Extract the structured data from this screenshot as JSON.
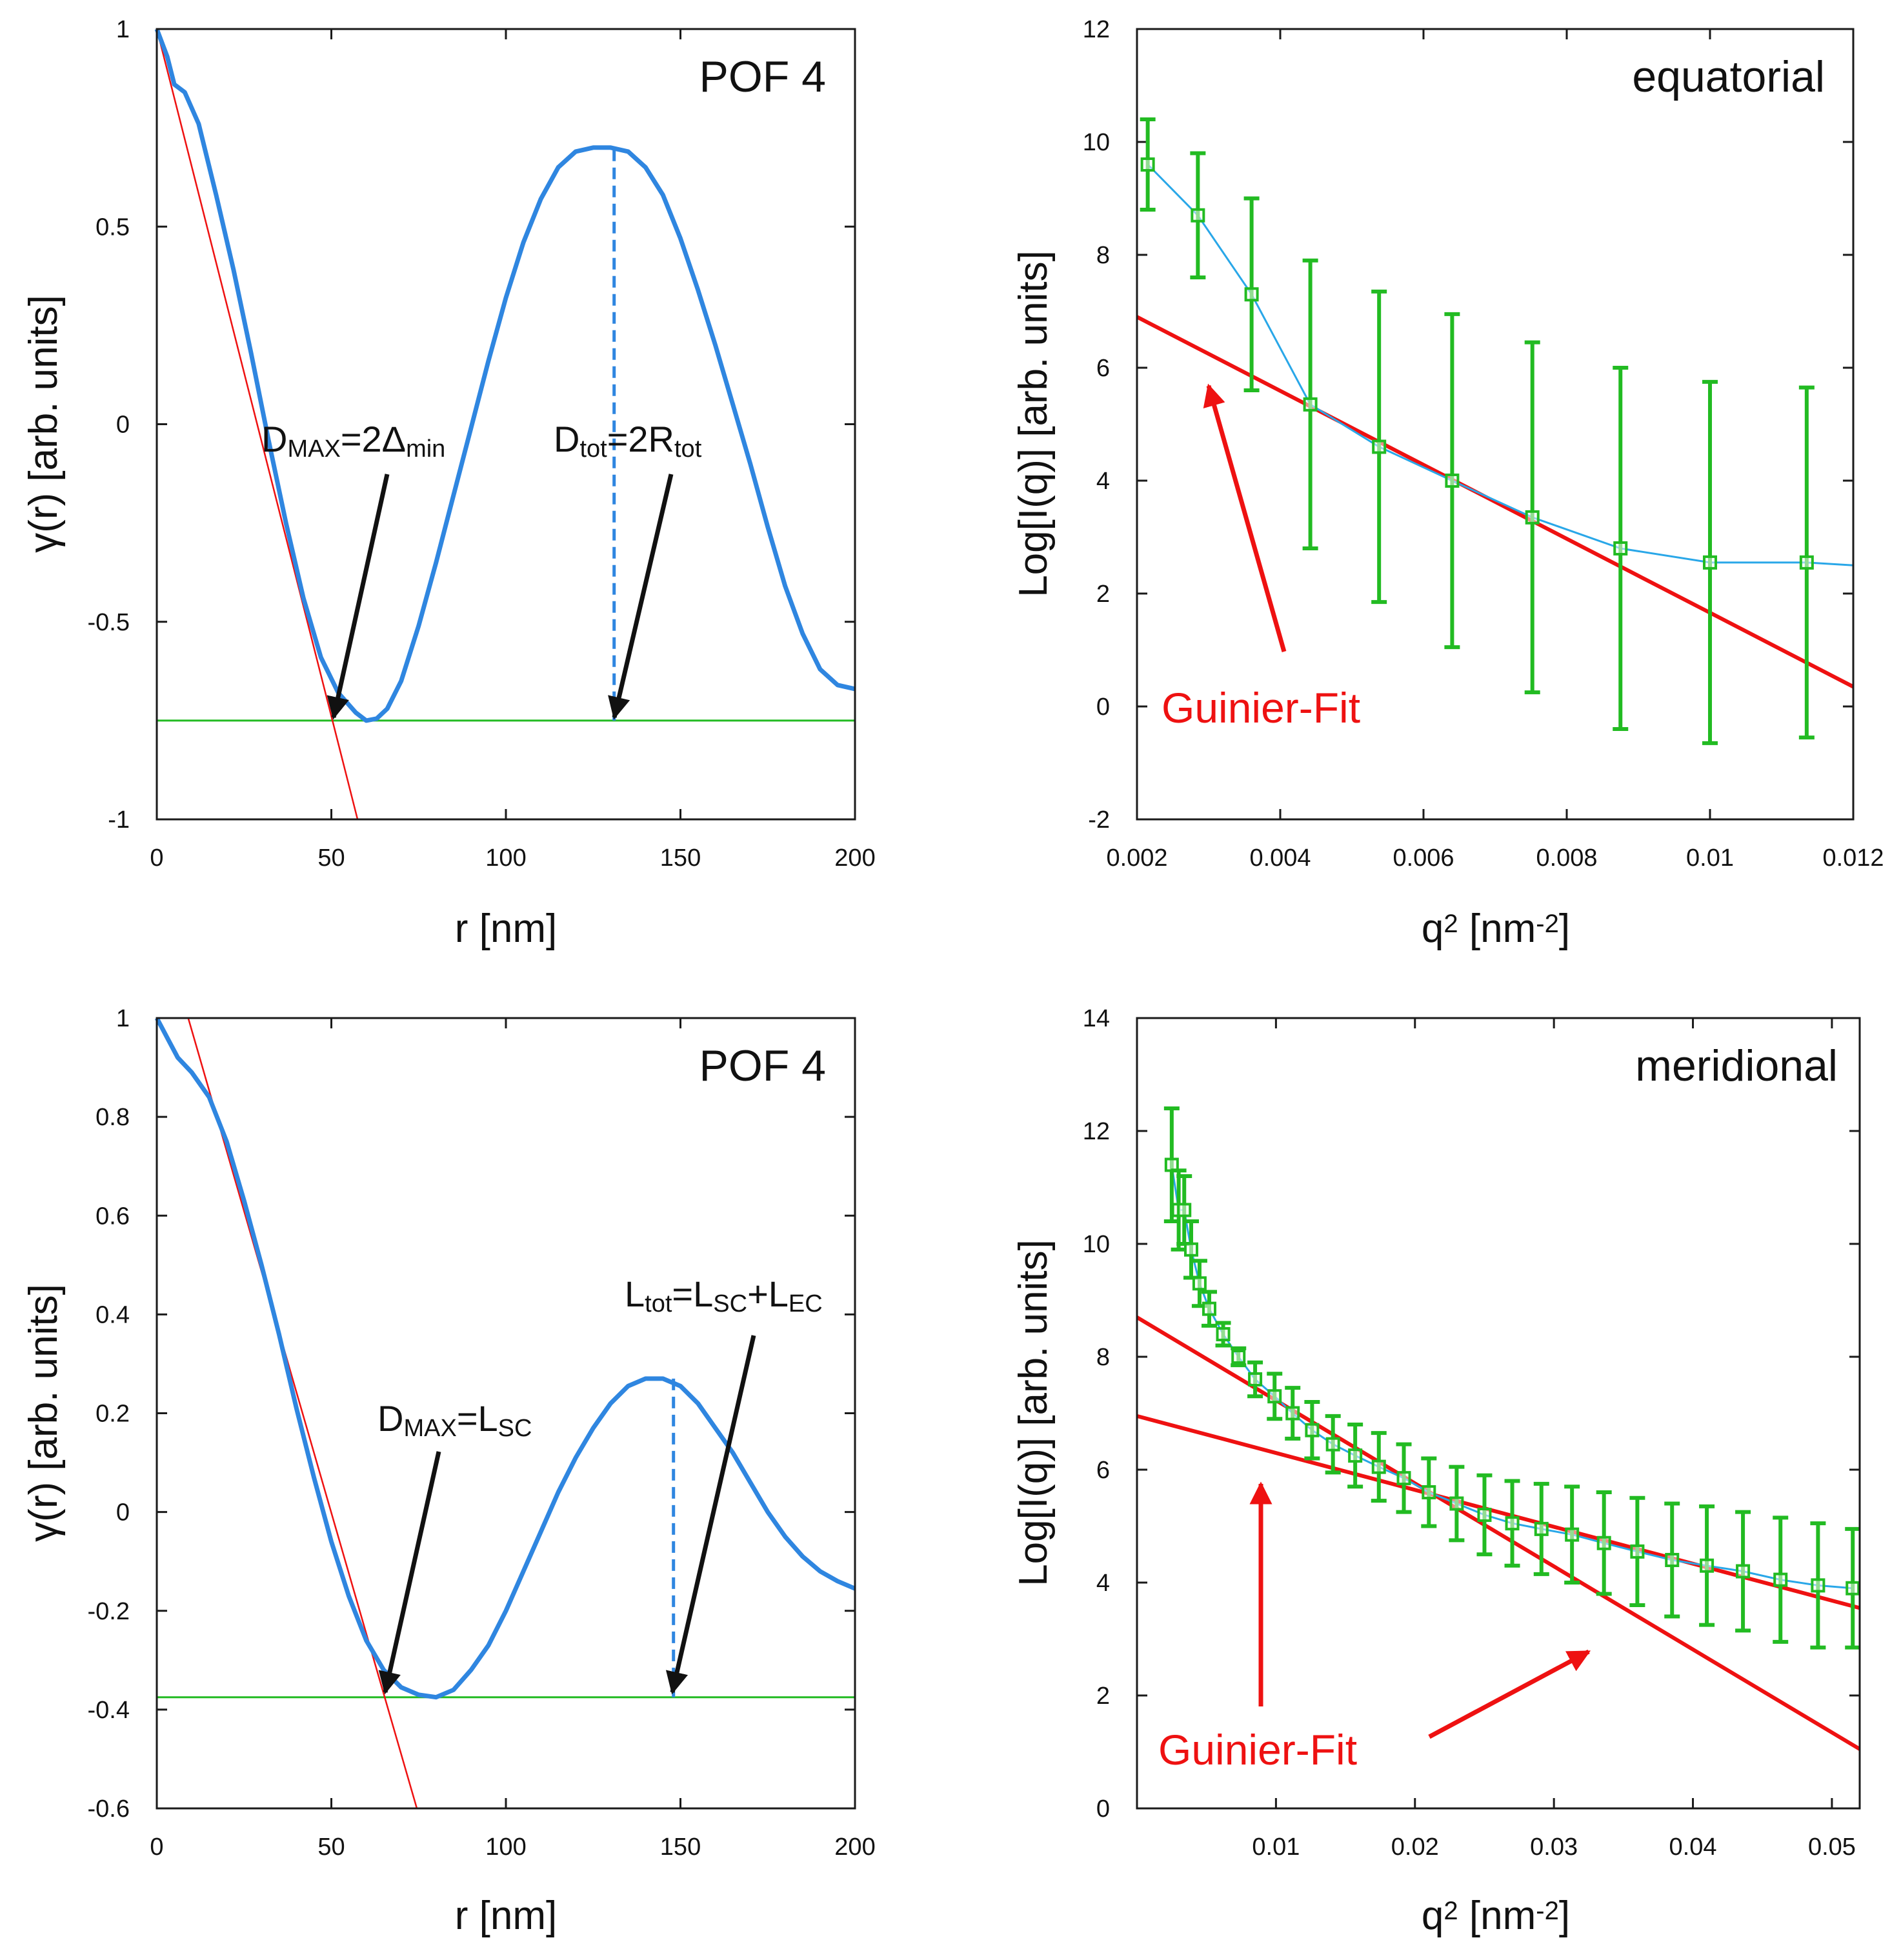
{
  "colors": {
    "curve": "#2f86e0",
    "fit": "#ee1111",
    "baseline": "#22bb22",
    "data": "#22bb22",
    "connector": "#29a7e8",
    "arrow_black": "#111111",
    "arrow_red": "#ee1111"
  },
  "chart_data": [
    {
      "id": "tl",
      "type": "line",
      "title": "POF 4",
      "xlabel": "r [nm]",
      "ylabel": "γ(r) [arb. units]",
      "xlim": [
        0,
        200
      ],
      "ylim": [
        -1,
        1
      ],
      "xticks": [
        0,
        50,
        100,
        150,
        200
      ],
      "xticklabels": [
        "0",
        "50",
        "100",
        "150",
        "200"
      ],
      "yticks": [
        -1,
        -0.5,
        0,
        0.5,
        1
      ],
      "yticklabels": [
        "-1",
        "-0.5",
        "0",
        "0.5",
        "1"
      ],
      "series": [
        {
          "name": "γ(r)",
          "x": [
            0,
            3,
            5,
            8,
            12,
            17,
            22,
            27,
            32,
            37,
            42,
            47,
            52,
            57,
            60,
            63,
            66,
            70,
            75,
            80,
            85,
            90,
            95,
            100,
            105,
            110,
            115,
            120,
            125,
            130,
            135,
            140,
            145,
            150,
            155,
            160,
            165,
            170,
            175,
            180,
            185,
            190,
            195,
            200
          ],
          "y": [
            1.0,
            0.93,
            0.86,
            0.84,
            0.76,
            0.58,
            0.39,
            0.18,
            -0.04,
            -0.25,
            -0.44,
            -0.59,
            -0.68,
            -0.73,
            -0.75,
            -0.745,
            -0.72,
            -0.65,
            -0.51,
            -0.35,
            -0.18,
            -0.01,
            0.16,
            0.32,
            0.46,
            0.57,
            0.65,
            0.69,
            0.7,
            0.7,
            0.69,
            0.65,
            0.58,
            0.47,
            0.34,
            0.2,
            0.05,
            -0.1,
            -0.26,
            -0.41,
            -0.53,
            -0.62,
            -0.66,
            -0.67
          ]
        },
        {
          "name": "linear fit",
          "x": [
            0,
            57.5
          ],
          "y": [
            1.0,
            -1.0
          ]
        },
        {
          "name": "baseline",
          "x": [
            0,
            200
          ],
          "y": [
            -0.75,
            -0.75
          ]
        },
        {
          "name": "peak marker",
          "x": [
            131,
            131
          ],
          "y": [
            0.695,
            -0.75
          ]
        }
      ],
      "annotations": [
        {
          "main": "D",
          "sub": "MAX",
          "rest": "=2Δ",
          "sub2": "min",
          "target": [
            50,
            -0.75
          ]
        },
        {
          "main": "D",
          "sub": "tot",
          "rest": "=2R",
          "sub2": "tot",
          "target": [
            131,
            -0.75
          ]
        }
      ]
    },
    {
      "id": "tr",
      "type": "scatter",
      "title": "equatorial",
      "xlabel_main": "q",
      "xlabel_sup": "2",
      "xlabel_rest": " [nm",
      "xlabel_sup2": "-2",
      "xlabel_end": "]",
      "ylabel": "Log[I(q)] [arb. units]",
      "xlim": [
        0.002,
        0.012
      ],
      "ylim": [
        -2,
        12
      ],
      "xticks": [
        0.002,
        0.004,
        0.006,
        0.008,
        0.01,
        0.012
      ],
      "xticklabels": [
        "0.002",
        "0.004",
        "0.006",
        "0.008",
        "0.01",
        "0.012"
      ],
      "yticks": [
        -2,
        0,
        2,
        4,
        6,
        8,
        10,
        12
      ],
      "yticklabels": [
        "-2",
        "0",
        "2",
        "4",
        "6",
        "8",
        "10",
        "12"
      ],
      "series": [
        {
          "name": "data",
          "x": [
            0.00215,
            0.00285,
            0.0036,
            0.00442,
            0.00538,
            0.0064,
            0.00752,
            0.00875,
            0.01,
            0.01135
          ],
          "y": [
            9.6,
            8.7,
            7.3,
            5.35,
            4.6,
            4.0,
            3.35,
            2.8,
            2.55,
            2.55
          ],
          "err": [
            0.8,
            1.1,
            1.7,
            2.55,
            2.75,
            2.95,
            3.1,
            3.2,
            3.2,
            3.1
          ]
        },
        {
          "name": "connector",
          "x": [
            0.01135,
            0.012
          ],
          "y": [
            2.55,
            2.5
          ]
        },
        {
          "name": "Guinier-Fit",
          "x": [
            0.002,
            0.012
          ],
          "y": [
            6.9,
            0.35
          ]
        }
      ],
      "label": "Guinier-Fit"
    },
    {
      "id": "bl",
      "type": "line",
      "title": "POF 4",
      "xlabel": "r [nm]",
      "ylabel": "γ(r) [arb. units]",
      "xlim": [
        0,
        200
      ],
      "ylim": [
        -0.6,
        1
      ],
      "xticks": [
        0,
        50,
        100,
        150,
        200
      ],
      "xticklabels": [
        "0",
        "50",
        "100",
        "150",
        "200"
      ],
      "yticks": [
        -0.6,
        -0.4,
        -0.2,
        0,
        0.2,
        0.4,
        0.6,
        0.8,
        1
      ],
      "yticklabels": [
        "-0.6",
        "-0.4",
        "-0.2",
        "0",
        "0.2",
        "0.4",
        "0.6",
        "0.8",
        "1"
      ],
      "series": [
        {
          "name": "γ(r)",
          "x": [
            0,
            3,
            6,
            10,
            15,
            20,
            25,
            30,
            35,
            40,
            45,
            50,
            55,
            60,
            65,
            70,
            75,
            80,
            85,
            90,
            95,
            100,
            105,
            110,
            115,
            120,
            125,
            130,
            135,
            140,
            145,
            150,
            155,
            160,
            165,
            170,
            175,
            180,
            185,
            190,
            195,
            200
          ],
          "y": [
            1.0,
            0.96,
            0.92,
            0.89,
            0.84,
            0.75,
            0.63,
            0.5,
            0.36,
            0.21,
            0.07,
            -0.06,
            -0.17,
            -0.26,
            -0.32,
            -0.355,
            -0.37,
            -0.375,
            -0.36,
            -0.32,
            -0.27,
            -0.2,
            -0.12,
            -0.04,
            0.04,
            0.11,
            0.17,
            0.22,
            0.255,
            0.27,
            0.27,
            0.255,
            0.22,
            0.17,
            0.12,
            0.06,
            0.0,
            -0.05,
            -0.09,
            -0.12,
            -0.14,
            -0.155
          ]
        },
        {
          "name": "linear fit",
          "x": [
            9,
            74.5
          ],
          "y": [
            1.0,
            -0.6
          ]
        },
        {
          "name": "baseline",
          "x": [
            0,
            200
          ],
          "y": [
            -0.375,
            -0.375
          ]
        },
        {
          "name": "peak marker",
          "x": [
            148,
            148
          ],
          "y": [
            0.27,
            -0.375
          ]
        }
      ],
      "annotations": [
        {
          "main": "D",
          "sub": "MAX",
          "rest": "=L",
          "sub2": "SC",
          "target": [
            66,
            -0.375
          ]
        },
        {
          "main": "L",
          "sub": "tot",
          "rest": "=L",
          "sub2": "SC",
          "rest2": "+L",
          "sub3": "EC",
          "target": [
            148,
            -0.375
          ]
        }
      ]
    },
    {
      "id": "br",
      "type": "scatter",
      "title": "meridional",
      "xlabel_main": "q",
      "xlabel_sup": "2",
      "xlabel_rest": " [nm",
      "xlabel_sup2": "-2",
      "xlabel_end": "]",
      "ylabel": "Log[I(q)] [arb. units]",
      "xlim": [
        0,
        0.052
      ],
      "ylim": [
        0,
        14
      ],
      "xticks": [
        0.01,
        0.02,
        0.03,
        0.04,
        0.05
      ],
      "xticklabels": [
        "0.01",
        "0.02",
        "0.03",
        "0.04",
        "0.05"
      ],
      "yticks": [
        0,
        2,
        4,
        6,
        8,
        10,
        12,
        14
      ],
      "yticklabels": [
        "0",
        "2",
        "4",
        "6",
        "8",
        "10",
        "12",
        "14"
      ],
      "series": [
        {
          "name": "data",
          "x": [
            0.0025,
            0.003,
            0.0034,
            0.0039,
            0.0045,
            0.0052,
            0.0062,
            0.0073,
            0.0085,
            0.0099,
            0.0112,
            0.0126,
            0.0141,
            0.0157,
            0.0174,
            0.0192,
            0.021,
            0.023,
            0.025,
            0.027,
            0.0291,
            0.0313,
            0.0336,
            0.036,
            0.0385,
            0.041,
            0.0436,
            0.0463,
            0.049,
            0.0515
          ],
          "y": [
            11.4,
            10.6,
            10.6,
            9.9,
            9.3,
            8.85,
            8.4,
            8.0,
            7.6,
            7.3,
            7.0,
            6.7,
            6.45,
            6.25,
            6.05,
            5.85,
            5.6,
            5.4,
            5.2,
            5.05,
            4.95,
            4.85,
            4.7,
            4.55,
            4.4,
            4.3,
            4.2,
            4.05,
            3.95,
            3.9
          ],
          "err": [
            1.0,
            0.7,
            0.6,
            0.5,
            0.4,
            0.3,
            0.2,
            0.15,
            0.3,
            0.4,
            0.45,
            0.5,
            0.5,
            0.55,
            0.6,
            0.6,
            0.6,
            0.65,
            0.7,
            0.75,
            0.8,
            0.85,
            0.9,
            0.95,
            1.0,
            1.05,
            1.05,
            1.1,
            1.1,
            1.05
          ]
        },
        {
          "name": "Guinier-Fit 1",
          "x": [
            0,
            0.052
          ],
          "y": [
            6.95,
            3.55
          ]
        },
        {
          "name": "Guinier-Fit 2",
          "x": [
            0,
            0.052
          ],
          "y": [
            8.7,
            1.05
          ]
        }
      ],
      "label": "Guinier-Fit"
    }
  ]
}
